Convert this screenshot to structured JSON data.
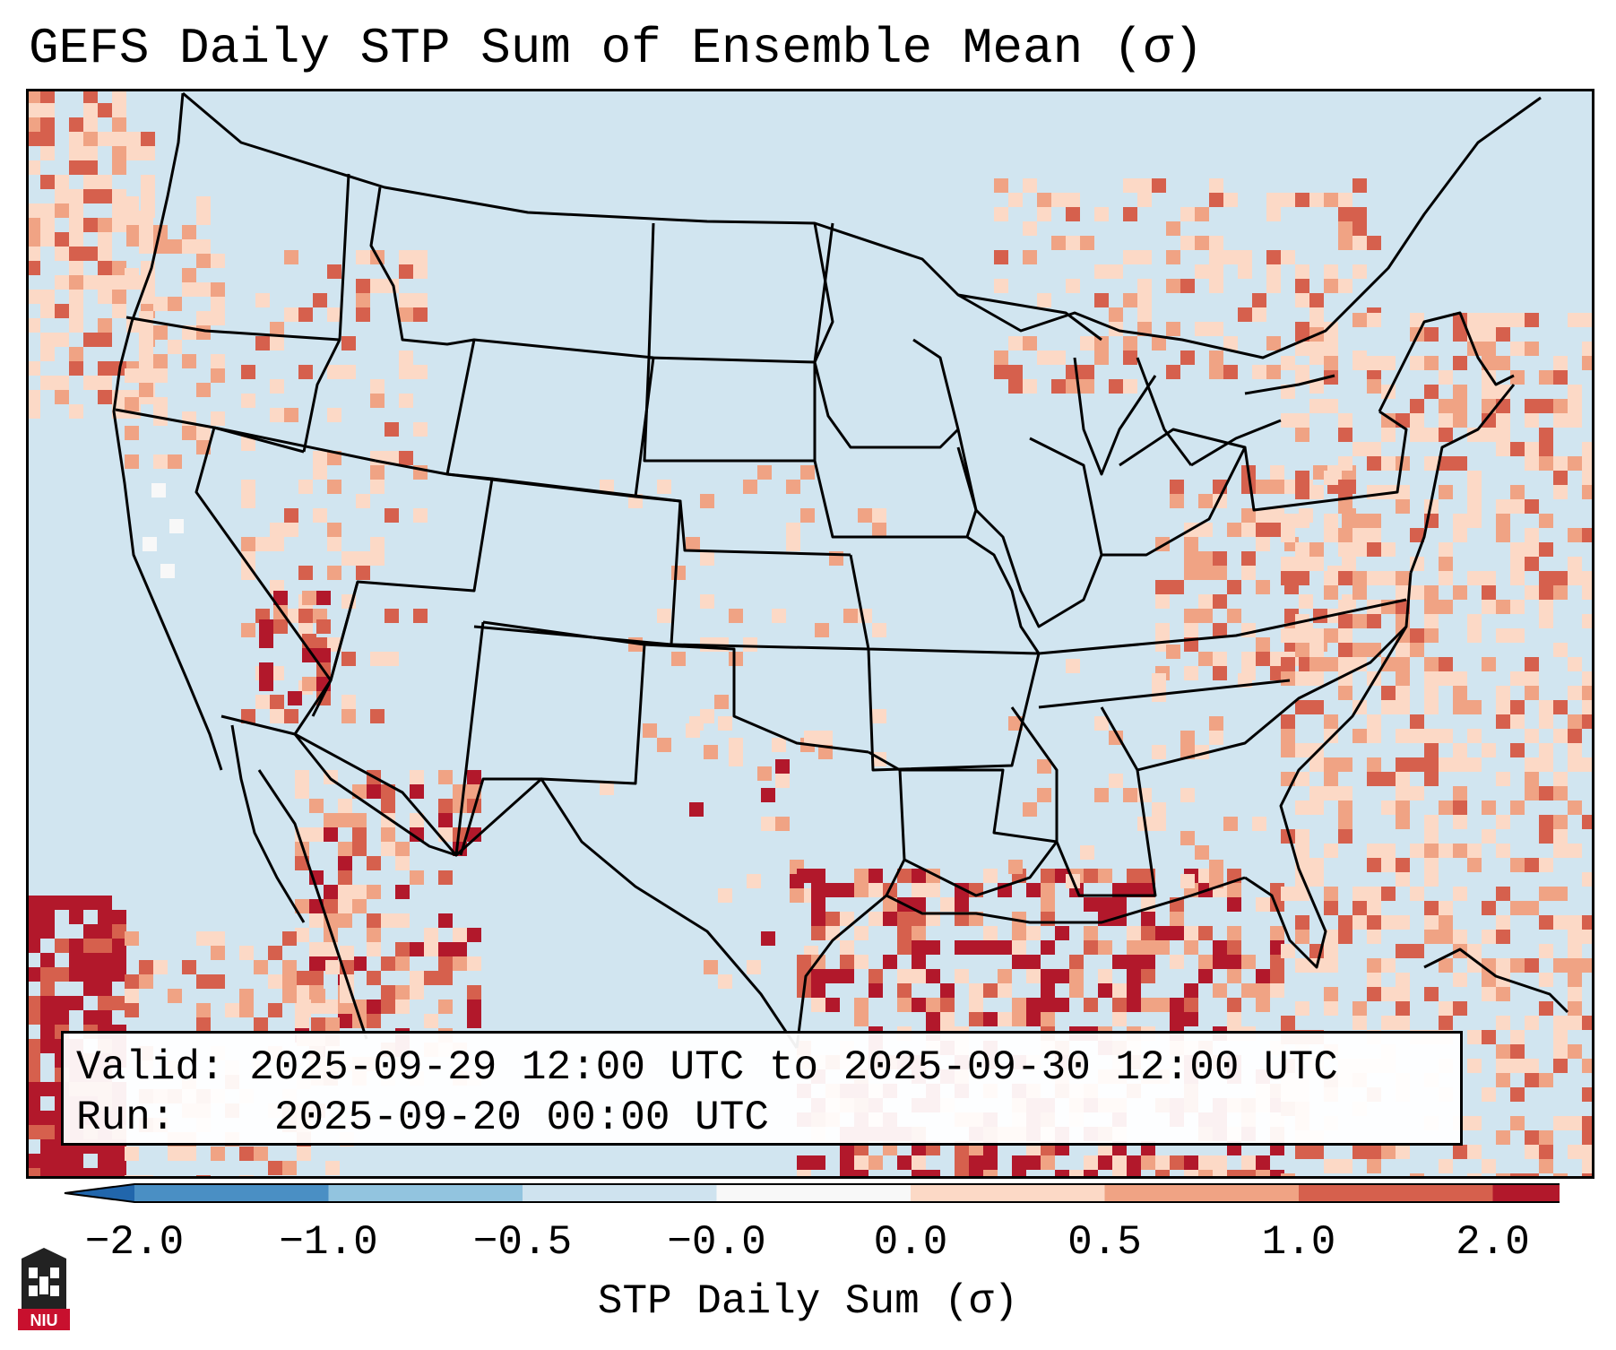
{
  "title_text": "GEFS Daily STP Sum of Ensemble Mean (σ)",
  "info": {
    "valid_label": "Valid:",
    "valid_value": "2025-09-29 12:00 UTC to 2025-09-30 12:00 UTC",
    "run_label": "Run:",
    "run_value": "2025-09-20 00:00 UTC"
  },
  "colorbar": {
    "label": "STP Daily Sum (σ)",
    "ticks": [
      "−2.0",
      "−1.0",
      "−0.5",
      "−0.0",
      "0.0",
      "0.5",
      "1.0",
      "2.0"
    ],
    "bin_colors": [
      "#4a8fc4",
      "#92c4df",
      "#cfe3ef",
      "#f8f8f8",
      "#fcd9c6",
      "#f0a384",
      "#d6604d",
      "#b2182b"
    ],
    "extend_low_color": "#2166ac",
    "extend_high_color": "#b2182b"
  },
  "map": {
    "projection": "Lambert Conformal",
    "region": "Continental United States",
    "background_color": "#d1e5f0",
    "border_color": "#000000"
  },
  "logo": {
    "text": "NIU",
    "name": "Northern Illinois University"
  }
}
